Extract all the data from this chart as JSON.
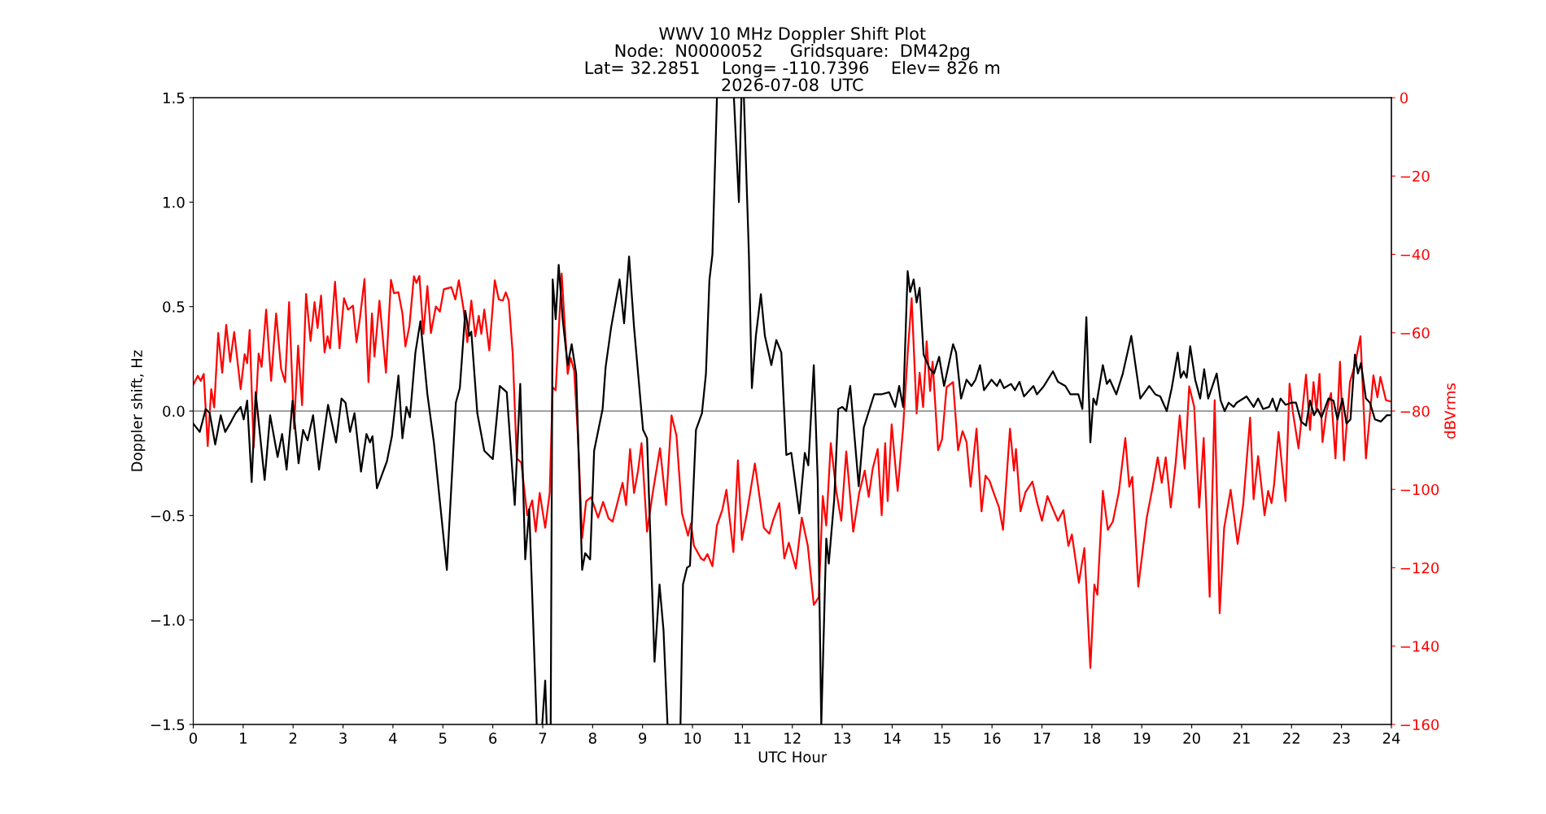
{
  "chart_data": {
    "type": "line",
    "title": "WWV 10 MHz Doppler Shift Plot\nNode:  N0000052     Gridsquare:  DM42pg\nLat= 32.2851    Long= -110.7396    Elev= 826 m\n2026-07-08  UTC",
    "xlabel": "UTC Hour",
    "ylabel": "Doppler shift, Hz",
    "y2label": "dBVrms",
    "xlim": [
      0,
      24
    ],
    "xticks": [
      0,
      1,
      2,
      3,
      4,
      5,
      6,
      7,
      8,
      9,
      10,
      11,
      12,
      13,
      14,
      15,
      16,
      17,
      18,
      19,
      20,
      21,
      22,
      23,
      24
    ],
    "ylim": [
      -1.5,
      1.5
    ],
    "yticks": [
      {
        "value": -1.5,
        "label": "−1.5"
      },
      {
        "value": -1.0,
        "label": "−1.0"
      },
      {
        "value": -0.5,
        "label": "−0.5"
      },
      {
        "value": 0.0,
        "label": "0.0"
      },
      {
        "value": 0.5,
        "label": "0.5"
      },
      {
        "value": 1.0,
        "label": "1.0"
      },
      {
        "value": 1.5,
        "label": "1.5"
      }
    ],
    "y2lim": [
      -160,
      0
    ],
    "y2ticks": [
      {
        "value": -160,
        "label": "−160"
      },
      {
        "value": -140,
        "label": "−140"
      },
      {
        "value": -120,
        "label": "−120"
      },
      {
        "value": -100,
        "label": "−100"
      },
      {
        "value": -80,
        "label": "−80"
      },
      {
        "value": -60,
        "label": "−60"
      },
      {
        "value": -40,
        "label": "−40"
      },
      {
        "value": -20,
        "label": "−20"
      },
      {
        "value": 0,
        "label": "0"
      }
    ],
    "ref_lines": [
      {
        "axis": "y",
        "value": 0,
        "color": "#808080"
      }
    ],
    "grid": false,
    "legend": false,
    "series": [
      {
        "color": "#ff0000",
        "axis": "y2",
        "x": [
          0,
          0.09,
          0.15,
          0.21,
          0.29,
          0.36,
          0.42,
          0.5,
          0.58,
          0.66,
          0.74,
          0.82,
          0.95,
          1.03,
          1.08,
          1.13,
          1.21,
          1.31,
          1.37,
          1.46,
          1.56,
          1.66,
          1.76,
          1.84,
          1.92,
          2.02,
          2.1,
          2.18,
          2.26,
          2.35,
          2.43,
          2.49,
          2.56,
          2.63,
          2.69,
          2.74,
          2.84,
          2.93,
          3.02,
          3.1,
          3.2,
          3.27,
          3.34,
          3.43,
          3.51,
          3.58,
          3.63,
          3.73,
          3.86,
          3.96,
          4.02,
          4.11,
          4.19,
          4.25,
          4.33,
          4.42,
          4.47,
          4.53,
          4.61,
          4.69,
          4.76,
          4.86,
          4.94,
          5.02,
          5.17,
          5.25,
          5.32,
          5.41,
          5.49,
          5.57,
          5.65,
          5.72,
          5.77,
          5.83,
          5.93,
          6.04,
          6.12,
          6.2,
          6.26,
          6.32,
          6.4,
          6.48,
          6.57,
          6.69,
          6.79,
          6.86,
          6.94,
          7.05,
          7.14,
          7.2,
          7.26,
          7.38,
          7.5,
          7.56,
          7.63,
          7.71,
          7.79,
          7.87,
          7.97,
          8.11,
          8.21,
          8.32,
          8.4,
          8.6,
          8.67,
          8.75,
          8.83,
          8.91,
          8.98,
          9.09,
          9.21,
          9.35,
          9.47,
          9.58,
          9.68,
          9.79,
          9.91,
          9.97,
          10.03,
          10.17,
          10.23,
          10.3,
          10.4,
          10.49,
          10.6,
          10.68,
          10.82,
          10.91,
          10.99,
          11.09,
          11.25,
          11.43,
          11.54,
          11.62,
          11.74,
          11.84,
          11.93,
          12.07,
          12.19,
          12.31,
          12.43,
          12.53,
          12.61,
          12.68,
          12.77,
          12.88,
          12.98,
          13.08,
          13.22,
          13.34,
          13.45,
          13.53,
          13.61,
          13.71,
          13.79,
          13.86,
          13.91,
          13.99,
          14.11,
          14.22,
          14.31,
          14.39,
          14.49,
          14.55,
          14.62,
          14.69,
          14.76,
          14.81,
          14.92,
          15.0,
          15.09,
          15.22,
          15.32,
          15.41,
          15.49,
          15.57,
          15.69,
          15.79,
          15.87,
          15.95,
          16.02,
          16.14,
          16.22,
          16.36,
          16.44,
          16.48,
          16.57,
          16.67,
          16.81,
          16.9,
          17.0,
          17.11,
          17.32,
          17.43,
          17.53,
          17.6,
          17.74,
          17.85,
          17.97,
          18.05,
          18.11,
          18.22,
          18.32,
          18.42,
          18.54,
          18.67,
          18.75,
          18.81,
          18.93,
          19.1,
          19.21,
          19.32,
          19.4,
          19.48,
          19.58,
          19.68,
          19.76,
          19.86,
          19.95,
          20.05,
          20.15,
          20.24,
          20.36,
          20.46,
          20.56,
          20.65,
          20.78,
          20.92,
          21.03,
          21.17,
          21.24,
          21.33,
          21.46,
          21.53,
          21.6,
          21.65,
          21.74,
          21.88,
          21.96,
          22.03,
          22.14,
          22.29,
          22.37,
          22.44,
          22.5,
          22.56,
          22.62,
          22.7,
          22.79,
          22.88,
          22.97,
          23.05,
          23.17,
          23.27,
          23.38,
          23.49,
          23.64,
          23.72,
          23.78,
          23.89,
          23.97
        ],
        "values": [
          -73.3,
          -71,
          -72.3,
          -70.5,
          -88.9,
          -74.4,
          -79.1,
          -60.1,
          -70.2,
          -58,
          -67.4,
          -59.8,
          -74.4,
          -65.5,
          -67.8,
          -59.3,
          -89.3,
          -65.3,
          -68.7,
          -54.1,
          -72.3,
          -55.1,
          -69.2,
          -72.6,
          -52.2,
          -84.5,
          -63.3,
          -78.5,
          -50.1,
          -62.1,
          -52.2,
          -58.8,
          -50.5,
          -65,
          -60.9,
          -64,
          -47,
          -64,
          -51.2,
          -54.1,
          -53.1,
          -62.4,
          -56.2,
          -46.3,
          -72.6,
          -55.1,
          -66.1,
          -51.8,
          -70.2,
          -46.5,
          -49.9,
          -49.7,
          -55.1,
          -63.5,
          -58.3,
          -45.6,
          -47.3,
          -45.5,
          -60.3,
          -48.1,
          -60.1,
          -53.3,
          -54.6,
          -48.9,
          -48.4,
          -51.5,
          -46.6,
          -53.6,
          -62.4,
          -51.8,
          -60.9,
          -55.7,
          -60.3,
          -54.1,
          -64.5,
          -46.6,
          -51.5,
          -51.8,
          -49.7,
          -51.8,
          -65.5,
          -92.1,
          -93.1,
          -106.6,
          -102.8,
          -110.8,
          -100.9,
          -109.8,
          -100.9,
          -73.9,
          -74.7,
          -44.9,
          -70.5,
          -66.4,
          -69.7,
          -87.4,
          -112.4,
          -103,
          -102,
          -107.2,
          -103.2,
          -107.4,
          -108.2,
          -98.3,
          -104,
          -89.7,
          -100.9,
          -95.2,
          -88.2,
          -110.8,
          -100.4,
          -89.5,
          -104,
          -81.1,
          -86.3,
          -106.1,
          -111.8,
          -108.7,
          -114.4,
          -117.6,
          -118.1,
          -116.5,
          -119.6,
          -109.2,
          -105.1,
          -100.1,
          -116,
          -92.6,
          -112.9,
          -106.1,
          -93.4,
          -109.8,
          -111.3,
          -107.7,
          -103.5,
          -117.6,
          -113.6,
          -120.2,
          -107.2,
          -114.4,
          -129.5,
          -127.5,
          -101.7,
          -109.2,
          -88.2,
          -100.4,
          -108,
          -90.3,
          -110.8,
          -100.9,
          -95.2,
          -101.9,
          -94.7,
          -89.7,
          -106.6,
          -88.2,
          -103,
          -83.4,
          -100.4,
          -84.1,
          -65.5,
          -51.2,
          -80.6,
          -70.2,
          -79,
          -62.2,
          -74.9,
          -67.4,
          -90,
          -87.2,
          -73.9,
          -72.6,
          -90,
          -85.1,
          -87.9,
          -99.3,
          -84.5,
          -105.6,
          -96.5,
          -97.8,
          -100.4,
          -104.6,
          -110.3,
          -84.5,
          -95.2,
          -89.7,
          -105.6,
          -100.7,
          -98,
          -103.2,
          -108,
          -101.7,
          -108,
          -105.3,
          -114.4,
          -111.5,
          -123.8,
          -115,
          -145.6,
          -124.3,
          -126.9,
          -100.4,
          -110.3,
          -108.2,
          -100.7,
          -86.9,
          -99.3,
          -96.8,
          -124.8,
          -107.2,
          -99.9,
          -91.8,
          -98.3,
          -91.8,
          -104.6,
          -93.1,
          -81.1,
          -94.7,
          -73.7,
          -78.9,
          -104.6,
          -86.9,
          -127.4,
          -77.2,
          -131.6,
          -109.8,
          -100.1,
          -113.9,
          -104,
          -81.7,
          -102.5,
          -91.5,
          -106.6,
          -100.4,
          -103.5,
          -98.8,
          -85.3,
          -103,
          -73,
          -80.6,
          -89.5,
          -70.7,
          -84.8,
          -72.6,
          -80.1,
          -70.5,
          -87.9,
          -80.1,
          -75.4,
          -92.1,
          -67.4,
          -92.6,
          -72.6,
          -68.1,
          -60.9,
          -92.1,
          -70.9,
          -76.5,
          -71.3,
          -77.2,
          -77.5
        ]
      },
      {
        "color": "#000000",
        "x": [
          0,
          0.13,
          0.25,
          0.33,
          0.44,
          0.55,
          0.64,
          0.76,
          0.85,
          0.95,
          1.01,
          1.08,
          1.17,
          1.25,
          1.43,
          1.54,
          1.69,
          1.78,
          1.87,
          1.99,
          2.11,
          2.2,
          2.29,
          2.4,
          2.52,
          2.7,
          2.86,
          2.97,
          3.05,
          3.14,
          3.23,
          3.36,
          3.47,
          3.54,
          3.59,
          3.68,
          3.88,
          3.98,
          4.11,
          4.19,
          4.27,
          4.34,
          4.45,
          4.55,
          4.69,
          4.82,
          5.08,
          5.26,
          5.34,
          5.45,
          5.53,
          5.57,
          5.69,
          5.83,
          6.0,
          6.14,
          6.28,
          6.44,
          6.55,
          6.65,
          6.73,
          6.88,
          6.92,
          6.99,
          7.05,
          7.08,
          7.12,
          7.16,
          7.2,
          7.26,
          7.32,
          7.4,
          7.5,
          7.58,
          7.67,
          7.79,
          7.85,
          7.95,
          8.03,
          8.2,
          8.26,
          8.37,
          8.54,
          8.63,
          8.73,
          8.83,
          9.01,
          9.09,
          9.24,
          9.34,
          9.42,
          9.5,
          9.6,
          9.76,
          9.81,
          9.89,
          9.95,
          10.07,
          10.19,
          10.27,
          10.34,
          10.4,
          10.49,
          10.66,
          10.83,
          10.93,
          10.98,
          11.0,
          11.03,
          11.13,
          11.19,
          11.27,
          11.37,
          11.45,
          11.58,
          11.68,
          11.78,
          11.88,
          11.98,
          12.14,
          12.25,
          12.32,
          12.43,
          12.51,
          12.58,
          12.68,
          12.73,
          12.84,
          12.92,
          13.0,
          13.08,
          13.16,
          13.33,
          13.43,
          13.64,
          13.78,
          13.94,
          14.06,
          14.14,
          14.22,
          14.31,
          14.36,
          14.43,
          14.49,
          14.55,
          14.63,
          14.76,
          14.84,
          14.94,
          15.04,
          15.22,
          15.28,
          15.38,
          15.49,
          15.59,
          15.67,
          15.76,
          15.84,
          15.99,
          16.1,
          16.16,
          16.24,
          16.38,
          16.46,
          16.55,
          16.64,
          16.83,
          16.9,
          17.04,
          17.22,
          17.32,
          17.47,
          17.57,
          17.73,
          17.81,
          17.89,
          17.97,
          18.03,
          18.09,
          18.22,
          18.3,
          18.36,
          18.49,
          18.62,
          18.79,
          18.97,
          19.06,
          19.15,
          19.27,
          19.37,
          19.5,
          19.6,
          19.72,
          19.78,
          19.84,
          19.9,
          19.97,
          20.07,
          20.17,
          20.25,
          20.33,
          20.5,
          20.58,
          20.66,
          20.74,
          20.84,
          20.9,
          21.1,
          21.24,
          21.33,
          21.43,
          21.55,
          21.62,
          21.7,
          21.78,
          21.88,
          22.0,
          22.09,
          22.19,
          22.29,
          22.37,
          22.45,
          22.52,
          22.6,
          22.74,
          22.84,
          22.92,
          23.02,
          23.1,
          23.18,
          23.27,
          23.33,
          23.39,
          23.49,
          23.57,
          23.67,
          23.79,
          23.91,
          23.97
        ],
        "values": [
          -0.06,
          -0.1,
          0.01,
          -0.01,
          -0.16,
          -0.02,
          -0.1,
          -0.05,
          -0.01,
          0.02,
          -0.04,
          0.05,
          -0.34,
          0.09,
          -0.33,
          -0.02,
          -0.22,
          -0.11,
          -0.28,
          0.05,
          -0.25,
          -0.09,
          -0.14,
          -0.02,
          -0.28,
          0.03,
          -0.15,
          0.06,
          0.04,
          -0.1,
          -0.01,
          -0.29,
          -0.11,
          -0.15,
          -0.12,
          -0.37,
          -0.24,
          -0.12,
          0.17,
          -0.13,
          0.02,
          -0.03,
          0.28,
          0.43,
          0.08,
          -0.15,
          -0.76,
          0.04,
          0.11,
          0.48,
          0.36,
          0.38,
          -0.01,
          -0.19,
          -0.23,
          0.12,
          0.09,
          -0.45,
          0.13,
          -0.71,
          -0.47,
          -1.5,
          null,
          -1.5,
          -1.29,
          -1.5,
          null,
          -1.5,
          0.63,
          0.44,
          0.7,
          0.44,
          0.22,
          0.32,
          0.18,
          -0.76,
          -0.68,
          -0.71,
          -0.19,
          0.01,
          0.21,
          0.4,
          0.63,
          0.42,
          0.74,
          0.4,
          -0.09,
          -0.13,
          -1.2,
          -0.83,
          -1.05,
          -1.5,
          null,
          -1.5,
          -0.83,
          -0.75,
          -0.74,
          -0.09,
          -0.01,
          0.18,
          0.63,
          0.75,
          1.5,
          null,
          1.5,
          1.0,
          1.5,
          null,
          1.5,
          0.75,
          0.11,
          0.36,
          0.56,
          0.36,
          0.22,
          0.34,
          0.28,
          -0.21,
          -0.2,
          -0.49,
          -0.2,
          -0.26,
          0.22,
          -0.34,
          -1.5,
          -0.61,
          -0.73,
          -0.42,
          0.01,
          0.02,
          0.0,
          0.12,
          -0.36,
          -0.08,
          0.08,
          0.08,
          0.09,
          0.02,
          0.12,
          0.02,
          0.67,
          0.57,
          0.63,
          0.52,
          0.59,
          0.27,
          0.2,
          0.18,
          0.26,
          0.12,
          0.32,
          0.28,
          0.06,
          0.15,
          0.12,
          0.15,
          0.22,
          0.1,
          0.15,
          0.12,
          0.15,
          0.11,
          0.13,
          0.1,
          0.14,
          0.07,
          0.12,
          0.08,
          0.12,
          0.19,
          0.14,
          0.12,
          0.08,
          0.08,
          0.01,
          0.45,
          -0.15,
          0.06,
          0.03,
          0.22,
          0.13,
          0.15,
          0.08,
          0.18,
          0.36,
          0.06,
          0.09,
          0.12,
          0.08,
          0.07,
          0.0,
          0.11,
          0.28,
          0.16,
          0.19,
          0.16,
          0.31,
          0.15,
          0.06,
          0.2,
          0.06,
          0.18,
          0.05,
          0.0,
          0.04,
          0.02,
          0.04,
          0.07,
          0.02,
          0.06,
          0.01,
          0.02,
          0.06,
          0.0,
          0.06,
          0.03,
          0.04,
          0.04,
          -0.05,
          -0.07,
          0.05,
          -0.02,
          0.01,
          -0.03,
          0.06,
          0.05,
          -0.04,
          0.06,
          -0.06,
          -0.04,
          0.27,
          0.18,
          0.23,
          0.06,
          0.04,
          -0.04,
          -0.05,
          -0.02,
          -0.02
        ]
      }
    ]
  }
}
